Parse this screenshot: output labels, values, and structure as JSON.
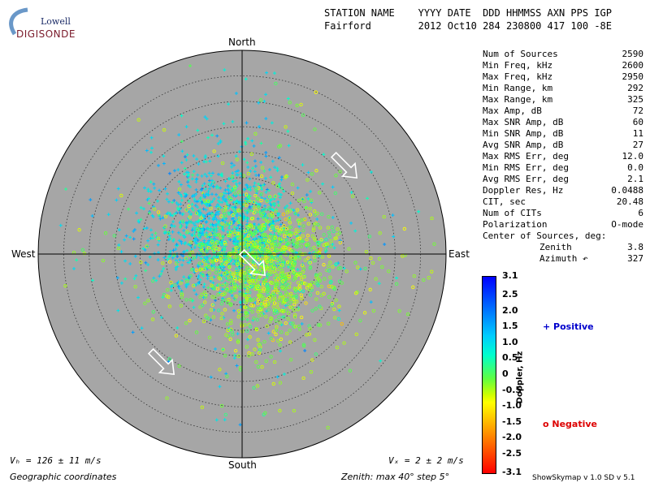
{
  "logo": {
    "line1": "Lowell",
    "line2": "DIGISONDE"
  },
  "header": {
    "line1": "STATION NAME    YYYY DATE  DDD HHMMSS AXN PPS IGP",
    "line2": "Fairford        2012 Oct10 284 230800 417 100 -8E"
  },
  "stats": [
    {
      "label": "Num of Sources",
      "value": "2590"
    },
    {
      "label": "Min Freq, kHz",
      "value": "2600"
    },
    {
      "label": "Max Freq, kHz",
      "value": "2950"
    },
    {
      "label": "Min Range, km",
      "value": "292"
    },
    {
      "label": "Max Range, km",
      "value": "325"
    },
    {
      "label": "Max Amp, dB",
      "value": "72"
    },
    {
      "label": "Max SNR Amp, dB",
      "value": "60"
    },
    {
      "label": "Min SNR Amp, dB",
      "value": "11"
    },
    {
      "label": "Avg SNR Amp, dB",
      "value": "27"
    },
    {
      "label": "Max RMS Err, deg",
      "value": "12.0"
    },
    {
      "label": "Min RMS Err, deg",
      "value": "0.0"
    },
    {
      "label": "Avg RMS Err, deg",
      "value": "2.1"
    },
    {
      "label": "Doppler Res, Hz",
      "value": "0.0488"
    },
    {
      "label": "CIT, sec",
      "value": "20.48"
    },
    {
      "label": "Num of CITs",
      "value": "6"
    },
    {
      "label": "Polarization",
      "value": "O-mode"
    },
    {
      "label": "Center of Sources, deg:",
      "value": ""
    },
    {
      "label": "Zenith",
      "value": "3.8",
      "indent": true
    },
    {
      "label": "Azimuth ↶",
      "value": "327",
      "indent": true
    }
  ],
  "directions": {
    "north": "North",
    "south": "South",
    "east": "East",
    "west": "West"
  },
  "colorbar": {
    "title": "Doppler, Hz",
    "ticks": [
      "3.1",
      "2.5",
      "2.0",
      "1.5",
      "1.0",
      "0.5",
      "0",
      "-0.5",
      "-1.0",
      "-1.5",
      "-2.0",
      "-2.5",
      "-3.1"
    ],
    "min": -3.1,
    "max": 3.1
  },
  "legend": {
    "positive": "+ Positive",
    "negative": "o Negative"
  },
  "footer": {
    "vh": "Vₕ = 126 ± 11 m/s",
    "vz": "Vₓ = 2 ± 2 m/s",
    "geo": "Geographic coordinates",
    "zenith": "Zenith: max 40°  step 5°",
    "version": "ShowSkymap v 1.0   SD v 5.1"
  },
  "colors": {
    "disk": "#a6a6a6",
    "marker_positive": "#00ffcc",
    "marker_negative": "#aaff44"
  },
  "chart_data": {
    "type": "scatter",
    "projection": "polar skymap",
    "radial_axis": {
      "quantity": "zenith angle",
      "max_deg": 40,
      "step_deg": 5
    },
    "cardinal_labels": [
      "North",
      "East",
      "South",
      "West"
    ],
    "num_sources": 2590,
    "source_center": {
      "zenith_deg": 3.8,
      "azimuth_deg": 327
    },
    "velocity": {
      "vh_ms": 126,
      "vh_err_ms": 11,
      "vz_ms": 2,
      "vz_err_ms": 2
    },
    "motion_arrows_azimuth_deg": [
      135,
      135,
      135
    ],
    "clusters": [
      {
        "sign": "positive",
        "marker": "+",
        "center_zenith_deg": 6,
        "center_azimuth_deg": 325,
        "spread_deg": 7,
        "doppler_hz": 1.0,
        "count": 1300
      },
      {
        "sign": "negative",
        "marker": "o",
        "center_zenith_deg": 5,
        "center_azimuth_deg": 120,
        "spread_deg": 7,
        "doppler_hz": -0.3,
        "count": 1290
      }
    ]
  }
}
